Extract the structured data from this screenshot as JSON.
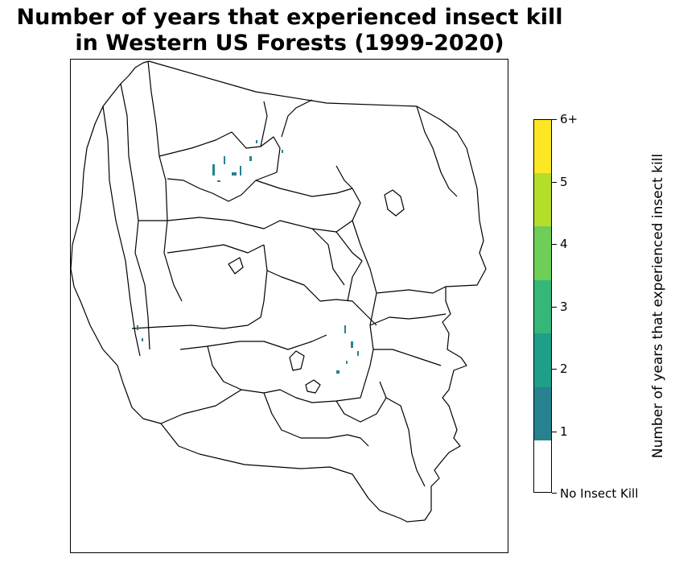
{
  "title_line1": "Number of years that experienced insect kill",
  "title_line2": "in Western US Forests (1999-2020)",
  "colorbar": {
    "label": "Number of years that experienced insect kill",
    "classes": [
      {
        "label": "No Insect Kill",
        "color": "#ffffff"
      },
      {
        "label": "1",
        "color": "#26828e"
      },
      {
        "label": "2",
        "color": "#1f9e89"
      },
      {
        "label": "3",
        "color": "#35b779"
      },
      {
        "label": "4",
        "color": "#6ece58"
      },
      {
        "label": "5",
        "color": "#b5de2b"
      },
      {
        "label": "6+",
        "color": "#fde725"
      }
    ],
    "tick_labels": [
      "No Insect Kill",
      "1",
      "2",
      "3",
      "4",
      "5",
      "6+"
    ]
  },
  "map": {
    "region": "Western US",
    "period": "1999-2020",
    "outline_color": "#000000",
    "insect_kill_areas": [
      {
        "area": "northern Rockies (Idaho/Montana)",
        "years_class": "1"
      },
      {
        "area": "southern Rockies (Colorado)",
        "years_class": "1"
      },
      {
        "area": "northern California/Oregon coast range",
        "years_class": "1"
      }
    ]
  }
}
